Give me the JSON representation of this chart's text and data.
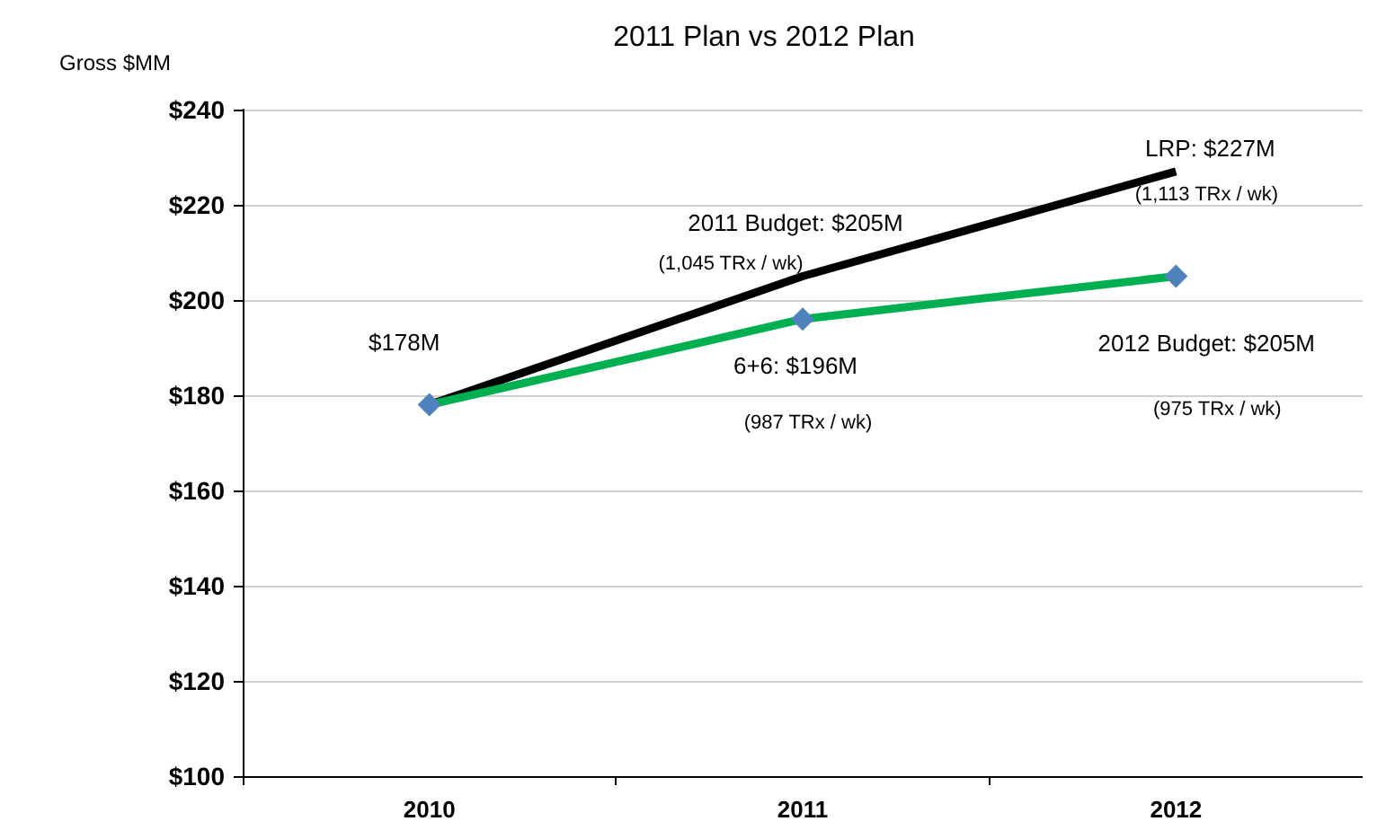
{
  "chart_data": {
    "type": "line",
    "title": "2011 Plan vs 2012 Plan",
    "ylabel": "Gross $MM",
    "categories": [
      "2010",
      "2011",
      "2012"
    ],
    "series": [
      {
        "color": "#000000",
        "values": [
          178,
          205,
          227
        ],
        "marker": "none"
      },
      {
        "color": "#00b050",
        "values": [
          178,
          196,
          205
        ],
        "marker": "diamond"
      }
    ],
    "ylim": [
      100,
      240
    ],
    "yticks": [
      {
        "value": 100,
        "label": "$100"
      },
      {
        "value": 120,
        "label": "$120"
      },
      {
        "value": 140,
        "label": "$140"
      },
      {
        "value": 160,
        "label": "$160"
      },
      {
        "value": 180,
        "label": "$180"
      },
      {
        "value": 200,
        "label": "$200"
      },
      {
        "value": 220,
        "label": "$220"
      },
      {
        "value": 240,
        "label": "$240"
      }
    ],
    "grid": "y",
    "line_style": "solid",
    "annotations": [
      {
        "text": "$178M",
        "x": "2010",
        "y": 178
      },
      {
        "text": "2011 Budget: $205M",
        "x": "2011",
        "y": 205
      },
      "(1,045 TRx / wk)",
      {
        "text": "6+6: $196M",
        "x": "2011",
        "y": 196
      },
      "(987 TRx / wk)",
      {
        "text": "LRP: $227M",
        "x": "2012",
        "y": 227
      },
      "(1,113 TRx / wk)",
      {
        "text": "2012 Budget: $205M",
        "x": "2012",
        "y": 205
      },
      "(975 TRx / wk)"
    ]
  }
}
